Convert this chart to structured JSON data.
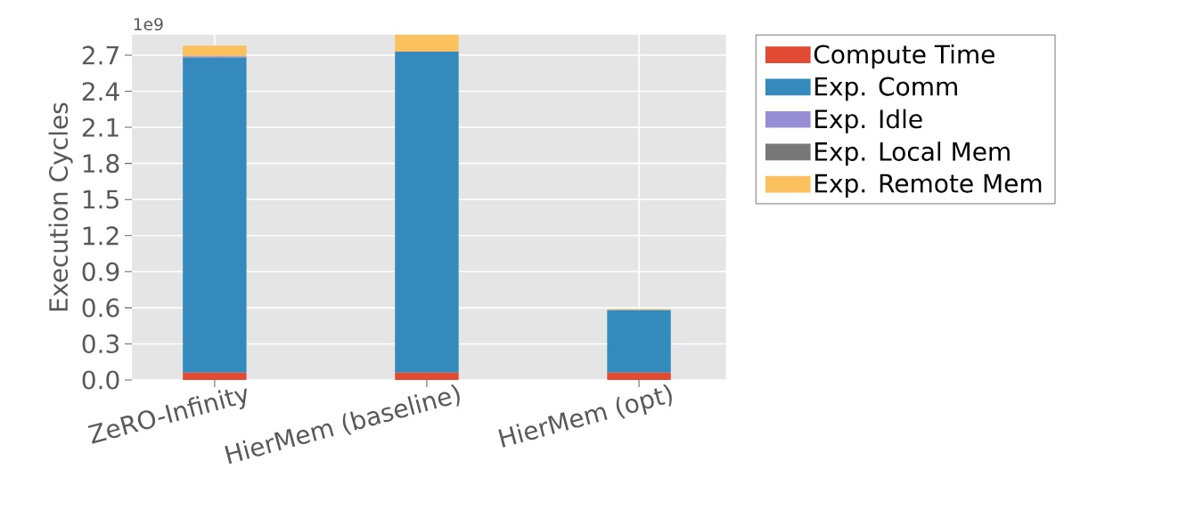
{
  "chart_data": {
    "type": "bar",
    "stacked": true,
    "ylabel": "Execution Cycles",
    "annotations": [
      "1e9"
    ],
    "categories": [
      "ZeRO-Infinity",
      "HierMem (baseline)",
      "HierMem (opt)"
    ],
    "series": [
      {
        "name": "Compute Time",
        "color": "#e24a33",
        "values": [
          0.06,
          0.06,
          0.06
        ]
      },
      {
        "name": "Exp. Comm",
        "color": "#348abd",
        "values": [
          2.62,
          2.67,
          0.52
        ]
      },
      {
        "name": "Exp. Idle",
        "color": "#988ed5",
        "values": [
          0.01,
          0,
          0
        ]
      },
      {
        "name": "Exp. Local Mem",
        "color": "#777777",
        "values": [
          0,
          0,
          0
        ]
      },
      {
        "name": "Exp. Remote Mem",
        "color": "#fbc15e",
        "values": [
          0.09,
          0.14,
          0.01
        ]
      }
    ],
    "ylim": [
      0,
      2.87
    ],
    "yticks": [
      {
        "value": 0,
        "label": "0.0"
      },
      0.3,
      0.6,
      0.9,
      1.2,
      1.5,
      1.8,
      2.1,
      2.4,
      2.7
    ],
    "grid": true,
    "legend": "right"
  }
}
